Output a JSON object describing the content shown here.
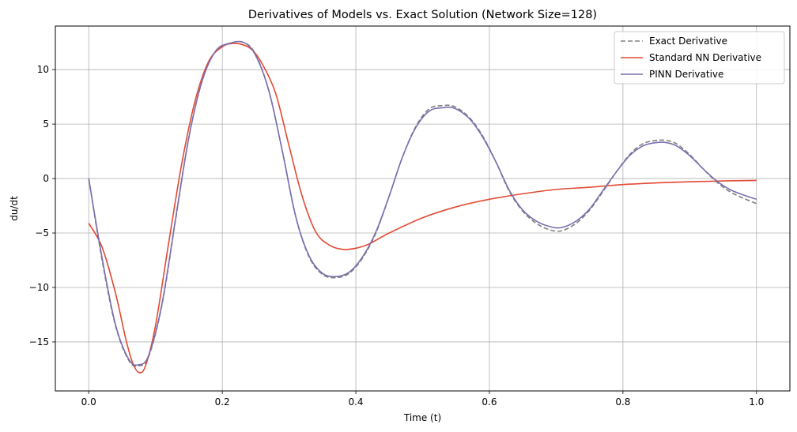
{
  "chart_data": {
    "type": "line",
    "title": "Derivatives of Models vs. Exact Solution (Network Size=128)",
    "xlabel": "Time (t)",
    "ylabel": "du/dt",
    "xlim": [
      -0.05,
      1.05
    ],
    "ylim": [
      -19.5,
      14.0
    ],
    "xticks": [
      0.0,
      0.2,
      0.4,
      0.6,
      0.8,
      1.0
    ],
    "xtick_labels": [
      "0.0",
      "0.2",
      "0.4",
      "0.6",
      "0.8",
      "1.0"
    ],
    "yticks": [
      10,
      5,
      0,
      -5,
      -10,
      -15
    ],
    "ytick_labels": [
      "10",
      "5",
      "0",
      "−5",
      "−10",
      "−15"
    ],
    "grid": true,
    "legend_position": "top-right",
    "series": [
      {
        "name": "Exact Derivative",
        "color": "#808080",
        "style": "dashed",
        "x": [
          0.0,
          0.02,
          0.04,
          0.06,
          0.075,
          0.09,
          0.11,
          0.13,
          0.15,
          0.17,
          0.19,
          0.21,
          0.232,
          0.25,
          0.27,
          0.29,
          0.31,
          0.33,
          0.35,
          0.37,
          0.39,
          0.41,
          0.43,
          0.45,
          0.47,
          0.49,
          0.51,
          0.53,
          0.548,
          0.57,
          0.59,
          0.61,
          0.63,
          0.65,
          0.67,
          0.69,
          0.708,
          0.73,
          0.75,
          0.77,
          0.79,
          0.81,
          0.83,
          0.85,
          0.865,
          0.88,
          0.9,
          0.92,
          0.94,
          0.96,
          0.98,
          1.0
        ],
        "y": [
          0.0,
          -7.5,
          -13.5,
          -16.7,
          -17.2,
          -16.3,
          -11.5,
          -3.8,
          3.8,
          9.0,
          11.7,
          12.4,
          12.5,
          11.4,
          8.0,
          2.5,
          -3.5,
          -7.2,
          -8.8,
          -9.1,
          -8.7,
          -7.3,
          -5.0,
          -1.6,
          2.0,
          4.8,
          6.4,
          6.7,
          6.6,
          5.6,
          3.9,
          1.5,
          -1.2,
          -3.0,
          -4.1,
          -4.7,
          -4.8,
          -4.1,
          -2.9,
          -1.2,
          0.6,
          2.2,
          3.2,
          3.5,
          3.5,
          3.2,
          2.2,
          0.9,
          -0.3,
          -1.2,
          -1.8,
          -2.3
        ]
      },
      {
        "name": "Standard NN Derivative",
        "color": "#e24a33",
        "style": "solid",
        "x": [
          0.0,
          0.02,
          0.04,
          0.055,
          0.065,
          0.075,
          0.085,
          0.1,
          0.12,
          0.14,
          0.16,
          0.18,
          0.2,
          0.215,
          0.23,
          0.245,
          0.26,
          0.28,
          0.3,
          0.32,
          0.34,
          0.36,
          0.38,
          0.4,
          0.42,
          0.45,
          0.5,
          0.55,
          0.6,
          0.65,
          0.7,
          0.75,
          0.8,
          0.85,
          0.9,
          0.95,
          1.0
        ],
        "y": [
          -4.1,
          -6.3,
          -10.5,
          -14.6,
          -16.8,
          -17.8,
          -17.2,
          -13.5,
          -5.8,
          1.6,
          7.3,
          10.8,
          12.1,
          12.4,
          12.3,
          11.8,
          10.5,
          7.8,
          3.0,
          -1.7,
          -4.9,
          -6.1,
          -6.5,
          -6.4,
          -6.0,
          -5.0,
          -3.6,
          -2.6,
          -1.9,
          -1.4,
          -1.0,
          -0.8,
          -0.55,
          -0.4,
          -0.3,
          -0.22,
          -0.17
        ]
      },
      {
        "name": "PINN Derivative",
        "color": "#7b6eb0",
        "style": "solid",
        "x": [
          0.0,
          0.02,
          0.04,
          0.06,
          0.075,
          0.09,
          0.11,
          0.13,
          0.15,
          0.17,
          0.19,
          0.21,
          0.232,
          0.25,
          0.27,
          0.29,
          0.31,
          0.33,
          0.35,
          0.37,
          0.39,
          0.41,
          0.43,
          0.45,
          0.47,
          0.49,
          0.51,
          0.53,
          0.548,
          0.57,
          0.59,
          0.61,
          0.63,
          0.65,
          0.67,
          0.69,
          0.708,
          0.73,
          0.75,
          0.77,
          0.79,
          0.81,
          0.83,
          0.85,
          0.865,
          0.88,
          0.9,
          0.92,
          0.94,
          0.96,
          0.98,
          1.0
        ],
        "y": [
          0.0,
          -7.3,
          -13.4,
          -16.6,
          -17.1,
          -16.2,
          -11.4,
          -3.7,
          3.8,
          9.0,
          11.7,
          12.4,
          12.5,
          11.3,
          8.0,
          2.5,
          -3.5,
          -7.1,
          -8.7,
          -9.0,
          -8.6,
          -7.2,
          -4.9,
          -1.6,
          2.0,
          4.7,
          6.2,
          6.5,
          6.45,
          5.5,
          3.8,
          1.5,
          -1.1,
          -2.9,
          -3.9,
          -4.4,
          -4.5,
          -3.9,
          -2.8,
          -1.1,
          0.6,
          2.1,
          3.0,
          3.3,
          3.3,
          3.0,
          2.1,
          0.9,
          -0.2,
          -1.0,
          -1.5,
          -1.9
        ]
      }
    ]
  }
}
